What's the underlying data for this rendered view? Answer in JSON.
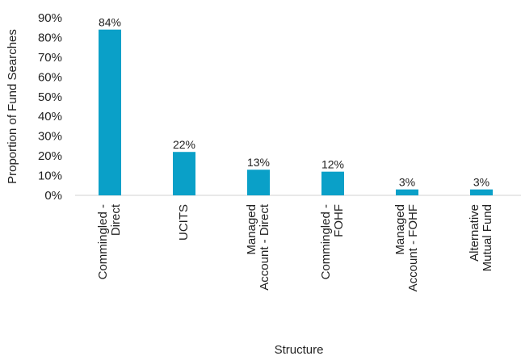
{
  "chart_data": {
    "type": "bar",
    "categories": [
      [
        "Commingled -",
        "Direct"
      ],
      [
        "UCITS"
      ],
      [
        "Managed",
        "Account - Direct"
      ],
      [
        "Commingled -",
        "FOHF"
      ],
      [
        "Managed",
        "Account - FOHF"
      ],
      [
        "Alternative",
        "Mutual Fund"
      ]
    ],
    "values": [
      84,
      22,
      13,
      12,
      3,
      3
    ],
    "data_labels": [
      "84%",
      "22%",
      "13%",
      "12%",
      "3%",
      "3%"
    ],
    "xlabel": "Structure",
    "ylabel": "Proportion of Fund Searches",
    "ylim": [
      0,
      90
    ],
    "yticks": [
      0,
      10,
      20,
      30,
      40,
      50,
      60,
      70,
      80,
      90
    ],
    "ytick_labels": [
      "0%",
      "10%",
      "20%",
      "30%",
      "40%",
      "50%",
      "60%",
      "70%",
      "80%",
      "90%"
    ],
    "grid": false,
    "legend": "none",
    "bar_color": "#0aa0c8"
  }
}
